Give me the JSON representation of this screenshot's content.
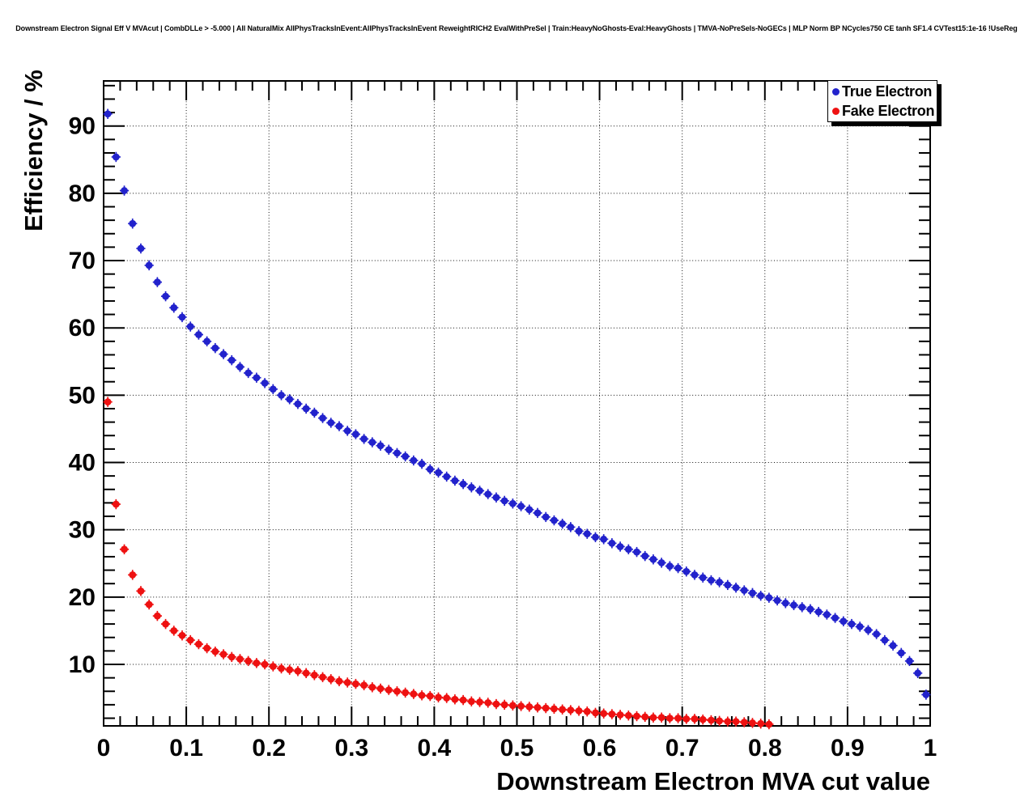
{
  "chart_data": {
    "type": "scatter",
    "title": "Downstream Electron Signal Eff V MVAcut | CombDLLe > -5.000 | All NaturalMix AllPhysTracksInEvent:AllPhysTracksInEvent ReweightRICH2 EvalWithPreSel | Train:HeavyNoGhosts-Eval:HeavyGhosts | TMVA-NoPreSels-NoGECs | MLP Norm BP NCycles750 CE tanh SF1.4 CVTest15:1e-16 !UseReg",
    "xlabel": "Downstream Electron MVA cut value",
    "ylabel": "Efficiency / %",
    "xlim": [
      0,
      1
    ],
    "ylim": [
      0.86,
      96.7
    ],
    "grid": "dotted-major",
    "legend_position": "top-right",
    "axis_color": "#000000",
    "x_axis": {
      "tick_values": [
        0,
        0.1,
        0.2,
        0.3,
        0.4,
        0.5,
        0.6,
        0.7,
        0.8,
        0.9,
        1
      ],
      "tick_labels": [
        "0",
        "0.1",
        "0.2",
        "0.3",
        "0.4",
        "0.5",
        "0.6",
        "0.7",
        "0.8",
        "0.9",
        "1"
      ],
      "minor_step": 0.02
    },
    "y_axis": {
      "tick_values": [
        10,
        20,
        30,
        40,
        50,
        60,
        70,
        80,
        90
      ],
      "tick_labels": [
        "10",
        "20",
        "30",
        "40",
        "50",
        "60",
        "70",
        "80",
        "90"
      ],
      "minor_step": 2
    },
    "series": [
      {
        "name": "True Electron",
        "color": "#2222cc",
        "marker": "circle-with-error-bars",
        "x": [
          0.005,
          0.015,
          0.025,
          0.035,
          0.045,
          0.055,
          0.065,
          0.075,
          0.085,
          0.095,
          0.105,
          0.115,
          0.125,
          0.135,
          0.145,
          0.155,
          0.165,
          0.175,
          0.185,
          0.195,
          0.205,
          0.215,
          0.225,
          0.235,
          0.245,
          0.255,
          0.265,
          0.275,
          0.285,
          0.295,
          0.305,
          0.315,
          0.325,
          0.335,
          0.345,
          0.355,
          0.365,
          0.375,
          0.385,
          0.395,
          0.405,
          0.415,
          0.425,
          0.435,
          0.445,
          0.455,
          0.465,
          0.475,
          0.485,
          0.495,
          0.505,
          0.515,
          0.525,
          0.535,
          0.545,
          0.555,
          0.565,
          0.575,
          0.585,
          0.595,
          0.605,
          0.615,
          0.625,
          0.635,
          0.645,
          0.655,
          0.665,
          0.675,
          0.685,
          0.695,
          0.705,
          0.715,
          0.725,
          0.735,
          0.745,
          0.755,
          0.765,
          0.775,
          0.785,
          0.795,
          0.805,
          0.815,
          0.825,
          0.835,
          0.845,
          0.855,
          0.865,
          0.875,
          0.885,
          0.895,
          0.905,
          0.915,
          0.925,
          0.935,
          0.945,
          0.955,
          0.965,
          0.975,
          0.985,
          0.995
        ],
        "y": [
          91.8,
          85.4,
          80.4,
          75.5,
          71.8,
          69.3,
          66.8,
          64.7,
          63.0,
          61.6,
          60.2,
          59.0,
          58.0,
          57.0,
          56.1,
          55.2,
          54.2,
          53.3,
          52.6,
          51.8,
          50.9,
          50.0,
          49.4,
          48.7,
          48.0,
          47.4,
          46.6,
          45.9,
          45.4,
          44.7,
          44.2,
          43.5,
          43.0,
          42.5,
          41.9,
          41.4,
          40.9,
          40.3,
          39.8,
          39.0,
          38.5,
          37.9,
          37.3,
          36.8,
          36.3,
          35.8,
          35.3,
          34.8,
          34.3,
          33.9,
          33.5,
          33.0,
          32.5,
          31.9,
          31.4,
          30.9,
          30.4,
          29.8,
          29.4,
          28.9,
          28.6,
          28.0,
          27.5,
          27.1,
          26.7,
          26.1,
          25.6,
          25.1,
          24.6,
          24.3,
          23.8,
          23.3,
          22.9,
          22.5,
          22.2,
          21.8,
          21.4,
          21.0,
          20.6,
          20.2,
          19.9,
          19.5,
          19.1,
          18.8,
          18.5,
          18.2,
          17.8,
          17.4,
          16.9,
          16.4,
          16.0,
          15.6,
          15.1,
          14.5,
          13.6,
          12.8,
          11.7,
          10.5,
          8.7,
          5.5
        ]
      },
      {
        "name": "Fake Electron",
        "color": "#ee1111",
        "marker": "circle-with-error-bars",
        "x": [
          0.005,
          0.015,
          0.025,
          0.035,
          0.045,
          0.055,
          0.065,
          0.075,
          0.085,
          0.095,
          0.105,
          0.115,
          0.125,
          0.135,
          0.145,
          0.155,
          0.165,
          0.175,
          0.185,
          0.195,
          0.205,
          0.215,
          0.225,
          0.235,
          0.245,
          0.255,
          0.265,
          0.275,
          0.285,
          0.295,
          0.305,
          0.315,
          0.325,
          0.335,
          0.345,
          0.355,
          0.365,
          0.375,
          0.385,
          0.395,
          0.405,
          0.415,
          0.425,
          0.435,
          0.445,
          0.455,
          0.465,
          0.475,
          0.485,
          0.495,
          0.505,
          0.515,
          0.525,
          0.535,
          0.545,
          0.555,
          0.565,
          0.575,
          0.585,
          0.595,
          0.605,
          0.615,
          0.625,
          0.635,
          0.645,
          0.655,
          0.665,
          0.675,
          0.685,
          0.695,
          0.705,
          0.715,
          0.725,
          0.735,
          0.745,
          0.755,
          0.765,
          0.775,
          0.785,
          0.795,
          0.805
        ],
        "y": [
          49.0,
          33.8,
          27.1,
          23.3,
          20.9,
          18.9,
          17.2,
          16.0,
          15.0,
          14.3,
          13.6,
          13.0,
          12.4,
          11.9,
          11.5,
          11.1,
          10.8,
          10.5,
          10.2,
          10.0,
          9.7,
          9.4,
          9.2,
          9.0,
          8.7,
          8.4,
          8.1,
          7.8,
          7.5,
          7.3,
          7.1,
          6.9,
          6.6,
          6.4,
          6.2,
          6.0,
          5.8,
          5.6,
          5.4,
          5.3,
          5.1,
          5.0,
          4.8,
          4.7,
          4.5,
          4.4,
          4.3,
          4.1,
          4.0,
          3.9,
          3.8,
          3.7,
          3.6,
          3.5,
          3.4,
          3.3,
          3.2,
          3.1,
          3.0,
          2.8,
          2.7,
          2.6,
          2.5,
          2.4,
          2.3,
          2.2,
          2.1,
          2.1,
          2.0,
          2.0,
          1.9,
          1.9,
          1.8,
          1.7,
          1.6,
          1.5,
          1.5,
          1.4,
          1.3,
          1.2,
          1.1
        ]
      }
    ]
  }
}
